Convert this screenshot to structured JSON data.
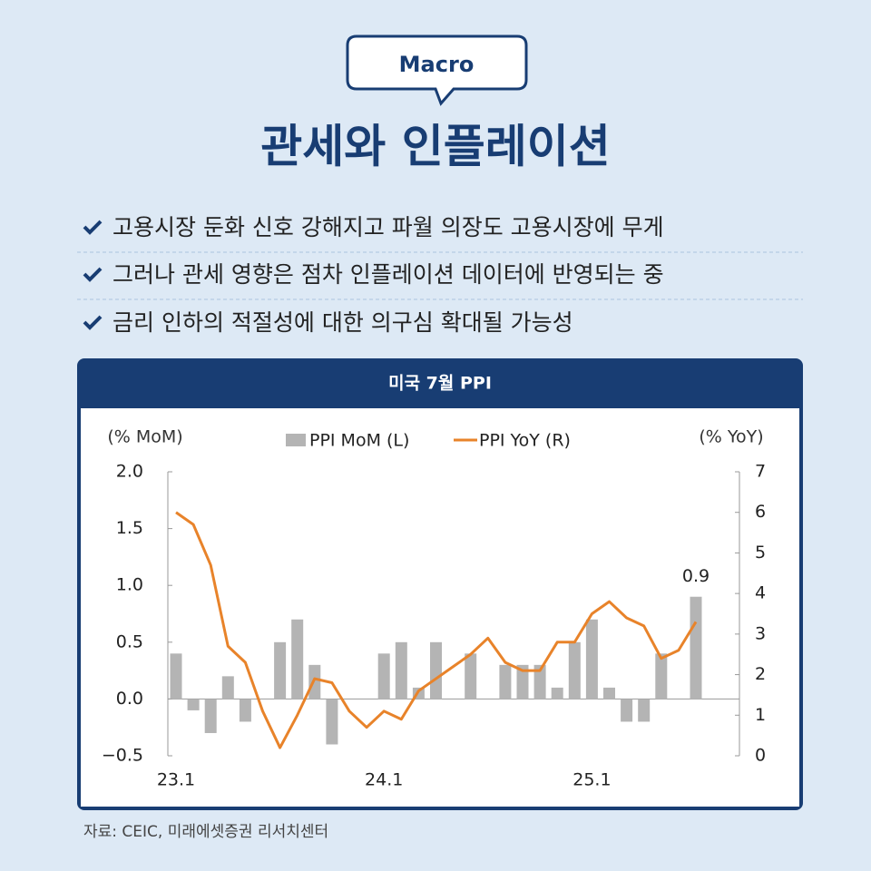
{
  "header": {
    "badge": "Macro",
    "title": "관세와 인플레이션"
  },
  "bullets": [
    "고용시장 둔화 신호 강해지고 파월 의장도 고용시장에 무게",
    "그러나 관세 영향은 점차 인플레이션 데이터에 반영되는 중",
    "금리 인하의 적절성에 대한 의구심 확대될 가능성"
  ],
  "chart_data": {
    "type": "combo",
    "title": "미국 7월 PPI",
    "ylabel": "(% MoM)",
    "y2label": "(% YoY)",
    "categories": [
      "23.1",
      null,
      null,
      null,
      null,
      null,
      null,
      null,
      null,
      null,
      null,
      null,
      "24.1",
      null,
      null,
      null,
      null,
      null,
      null,
      null,
      null,
      null,
      null,
      null,
      "25.1",
      null,
      null,
      null,
      null,
      null,
      null
    ],
    "series": [
      {
        "name": "PPI MoM (L)",
        "type": "bar",
        "color": "#b4b4b4",
        "values": [
          0.4,
          -0.1,
          -0.3,
          0.2,
          -0.2,
          0.0,
          0.5,
          0.7,
          0.3,
          -0.4,
          0.0,
          0.0,
          0.4,
          0.5,
          0.1,
          0.5,
          0.0,
          0.4,
          0.0,
          0.3,
          0.3,
          0.3,
          0.1,
          0.5,
          0.7,
          0.1,
          -0.2,
          -0.2,
          0.4,
          0.0,
          0.9
        ]
      },
      {
        "name": "PPI YoY (R)",
        "type": "line",
        "axis": "y2",
        "color": "#e8832a",
        "values": [
          6.0,
          5.7,
          4.7,
          2.7,
          2.3,
          1.1,
          0.2,
          1.0,
          1.9,
          1.8,
          1.1,
          0.7,
          1.1,
          0.9,
          1.6,
          1.9,
          2.2,
          2.5,
          2.9,
          2.3,
          2.1,
          2.1,
          2.8,
          2.8,
          3.5,
          3.8,
          3.4,
          3.2,
          2.4,
          2.6,
          3.3
        ]
      }
    ],
    "ylim": [
      -0.5,
      2.0
    ],
    "yticks": [
      {
        "value": -0.5,
        "label": "−0.5"
      },
      {
        "value": 0,
        "label": "0.0"
      },
      0.5,
      {
        "value": 1,
        "label": "1.0"
      },
      1.5,
      {
        "value": 2,
        "label": "2.0"
      }
    ],
    "y2lim": [
      0,
      7
    ],
    "y2ticks": [
      0,
      1,
      2,
      3,
      4,
      5,
      6,
      7
    ]
  },
  "source": "자료: CEIC, 미래에셋증권 리서치센터"
}
